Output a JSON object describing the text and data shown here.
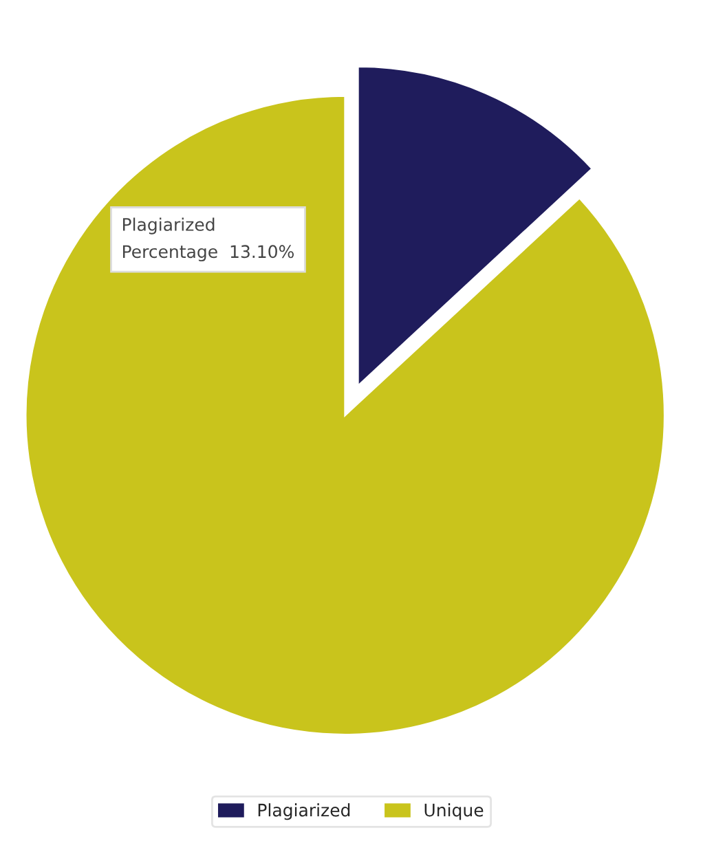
{
  "chart_data": {
    "type": "pie",
    "categories": [
      "Plagiarized",
      "Unique"
    ],
    "values": [
      13.1,
      86.9
    ],
    "colors": [
      "#1f1c5c",
      "#c9c41c"
    ],
    "annotations": [
      "Plagiarized\nPercentage  13.10%"
    ],
    "legend": "bottom"
  }
}
